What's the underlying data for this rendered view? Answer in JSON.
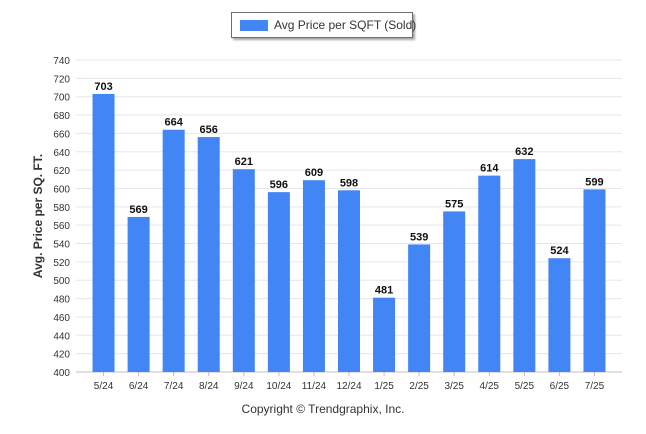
{
  "chart_data": {
    "type": "bar",
    "categories": [
      "5/24",
      "6/24",
      "7/24",
      "8/24",
      "9/24",
      "10/24",
      "11/24",
      "12/24",
      "1/25",
      "2/25",
      "3/25",
      "4/25",
      "5/25",
      "6/25",
      "7/25"
    ],
    "series": [
      {
        "name": "Avg Price per SQFT (Sold)",
        "values": [
          703,
          569,
          664,
          656,
          621,
          596,
          609,
          598,
          481,
          539,
          575,
          614,
          632,
          524,
          599
        ]
      }
    ],
    "ylabel": "Avg. Price per SQ. FT.",
    "xlabel": "",
    "ylim": [
      400,
      740
    ],
    "yticks": [
      400,
      420,
      440,
      460,
      480,
      500,
      520,
      540,
      560,
      580,
      600,
      620,
      640,
      660,
      680,
      700,
      720,
      740
    ],
    "grid": true,
    "legend_position": "top-center",
    "bar_color": "#4285f4",
    "data_labels": true
  },
  "footer": {
    "copyright": "Copyright © Trendgraphix, Inc."
  }
}
